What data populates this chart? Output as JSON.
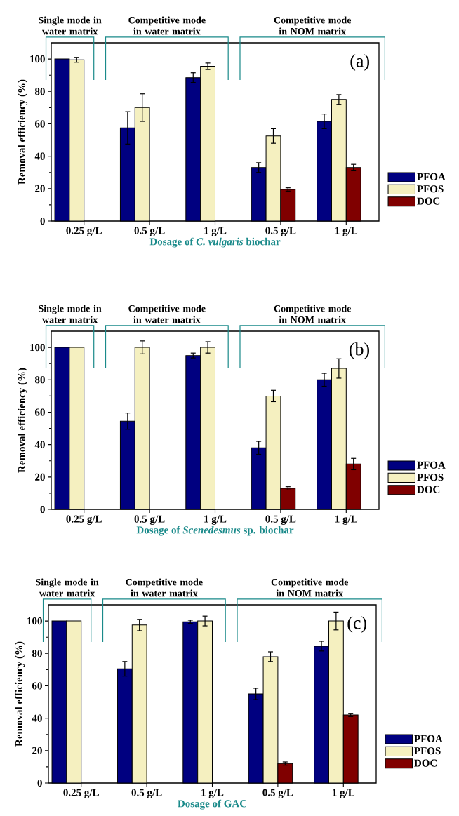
{
  "chart_data": [
    {
      "type": "bar",
      "xlabel": "Dosage of *C. vulgaris* biochar",
      "ylabel": "Removal efficiency (%)",
      "categories": [
        "0.25 g/L",
        "0.5 g/L",
        "1 g/L",
        "0.5 g/L",
        "1 g/L"
      ],
      "series": [
        {
          "name": "PFOA",
          "color": "#000080",
          "values": [
            100,
            57.5,
            88.5,
            33,
            61.5
          ],
          "errors": [
            null,
            10,
            3,
            3,
            4.5
          ]
        },
        {
          "name": "PFOS",
          "color": "#f5f0c0",
          "values": [
            99.5,
            70,
            95.5,
            52.5,
            75
          ],
          "errors": [
            1.5,
            8.5,
            2,
            4.5,
            3
          ]
        },
        {
          "name": "DOC",
          "color": "#800000",
          "values": [
            null,
            null,
            null,
            19.5,
            33
          ],
          "errors": [
            null,
            null,
            null,
            1,
            2
          ]
        }
      ],
      "ylim": [
        0,
        110
      ],
      "yticks": [
        0,
        20,
        40,
        60,
        80,
        100
      ],
      "legend": "right",
      "annotations": [
        "Single mode in water matrix",
        "Competitive mode in water matrix",
        "Competitive mode in NOM matrix",
        "(a)"
      ]
    },
    {
      "type": "bar",
      "xlabel": "Dosage of *Scenedesmus* sp. biochar",
      "ylabel": "Removal efficiency (%)",
      "categories": [
        "0.25 g/L",
        "0.5 g/L",
        "1 g/L",
        "0.5 g/L",
        "1 g/L"
      ],
      "series": [
        {
          "name": "PFOA",
          "color": "#000080",
          "values": [
            100,
            54.5,
            95,
            38,
            80
          ],
          "errors": [
            null,
            5,
            1.5,
            4,
            4
          ]
        },
        {
          "name": "PFOS",
          "color": "#f5f0c0",
          "values": [
            100,
            100,
            100,
            70,
            87
          ],
          "errors": [
            null,
            4,
            3.5,
            3.5,
            6
          ]
        },
        {
          "name": "DOC",
          "color": "#800000",
          "values": [
            null,
            null,
            null,
            13,
            28
          ],
          "errors": [
            null,
            null,
            null,
            1,
            3.5
          ]
        }
      ],
      "ylim": [
        0,
        110
      ],
      "yticks": [
        0,
        20,
        40,
        60,
        80,
        100
      ],
      "legend": "right",
      "annotations": [
        "Single mode in water matrix",
        "Competitive mode in water matrix",
        "Competitive mode in NOM matrix",
        "(b)"
      ]
    },
    {
      "type": "bar",
      "xlabel": "Dosage of GAC",
      "ylabel": "Removal efficiency (%)",
      "categories": [
        "0.25 g/L",
        "0.5 g/L",
        "1 g/L",
        "0.5 g/L",
        "1 g/L"
      ],
      "series": [
        {
          "name": "PFOA",
          "color": "#000080",
          "values": [
            100,
            70.5,
            99.5,
            55,
            84.5
          ],
          "errors": [
            null,
            4.5,
            1,
            3.5,
            3
          ]
        },
        {
          "name": "PFOS",
          "color": "#f5f0c0",
          "values": [
            100,
            97.5,
            100,
            78,
            100
          ],
          "errors": [
            null,
            3.5,
            3,
            3,
            5.5
          ]
        },
        {
          "name": "DOC",
          "color": "#800000",
          "values": [
            null,
            null,
            null,
            12,
            42
          ],
          "errors": [
            null,
            null,
            null,
            1,
            1
          ]
        }
      ],
      "ylim": [
        0,
        110
      ],
      "yticks": [
        0,
        20,
        40,
        60,
        80,
        100
      ],
      "legend": "right",
      "annotations": [
        "Single mode in water matrix",
        "Competitive mode in water matrix",
        "Competitive mode in NOM matrix",
        "(c)"
      ]
    }
  ]
}
